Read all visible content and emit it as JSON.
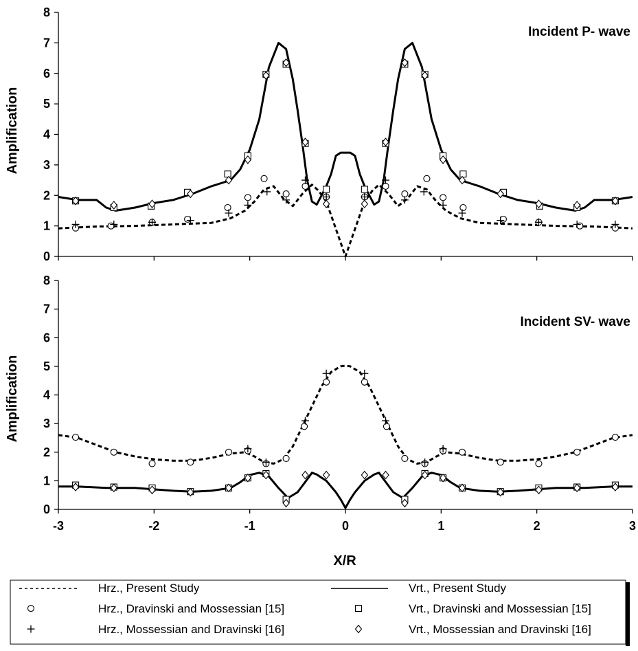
{
  "chart_data": [
    {
      "type": "line",
      "title": "Incident P- wave",
      "xlabel": "",
      "ylabel": "Amplification",
      "xlim": [
        -3,
        3
      ],
      "ylim": [
        0,
        8
      ],
      "yticks": [
        "0",
        "1",
        "2",
        "3",
        "4",
        "5",
        "6",
        "7",
        "8"
      ],
      "grid": false,
      "series": [
        {
          "name": "Hrz., Present Study",
          "style": "dashed",
          "x": [
            -3,
            -2.6,
            -2.2,
            -1.8,
            -1.4,
            -1.2,
            -1.05,
            -0.95,
            -0.85,
            -0.75,
            -0.65,
            -0.55,
            -0.45,
            -0.35,
            -0.28,
            -0.2,
            -0.1,
            0,
            0.1,
            0.2,
            0.28,
            0.35,
            0.45,
            0.55,
            0.65,
            0.75,
            0.85,
            0.95,
            1.05,
            1.2,
            1.4,
            1.8,
            2.2,
            2.6,
            3
          ],
          "y": [
            0.92,
            0.98,
            1.0,
            1.05,
            1.1,
            1.25,
            1.5,
            1.8,
            2.2,
            2.3,
            1.9,
            1.65,
            2.05,
            2.35,
            2.15,
            1.8,
            0.9,
            0,
            0.9,
            1.8,
            2.15,
            2.35,
            2.05,
            1.65,
            1.9,
            2.3,
            2.2,
            1.8,
            1.5,
            1.25,
            1.1,
            1.05,
            1.0,
            0.98,
            0.92
          ]
        },
        {
          "name": "Vrt., Present Study",
          "style": "solid",
          "x": [
            -3,
            -2.8,
            -2.6,
            -2.5,
            -2.4,
            -2.2,
            -2.0,
            -1.8,
            -1.6,
            -1.4,
            -1.3,
            -1.2,
            -1.1,
            -1.0,
            -0.9,
            -0.8,
            -0.7,
            -0.62,
            -0.55,
            -0.5,
            -0.45,
            -0.4,
            -0.35,
            -0.3,
            -0.25,
            -0.2,
            -0.15,
            -0.1,
            -0.05,
            0,
            0.05,
            0.1,
            0.15,
            0.2,
            0.25,
            0.3,
            0.35,
            0.4,
            0.45,
            0.5,
            0.55,
            0.62,
            0.7,
            0.8,
            0.9,
            1.0,
            1.1,
            1.2,
            1.3,
            1.4,
            1.6,
            1.8,
            2.0,
            2.2,
            2.4,
            2.5,
            2.6,
            2.8,
            3
          ],
          "y": [
            1.95,
            1.85,
            1.85,
            1.6,
            1.5,
            1.6,
            1.75,
            1.85,
            2.05,
            2.3,
            2.4,
            2.5,
            2.85,
            3.5,
            4.5,
            6.2,
            7.0,
            6.8,
            5.8,
            4.8,
            3.7,
            2.5,
            1.8,
            1.7,
            2.0,
            2.3,
            2.7,
            3.3,
            3.4,
            3.4,
            3.4,
            3.3,
            2.7,
            2.3,
            2.0,
            1.7,
            1.8,
            2.5,
            3.7,
            4.8,
            5.8,
            6.8,
            7.0,
            6.2,
            4.5,
            3.5,
            2.85,
            2.5,
            2.4,
            2.3,
            2.05,
            1.85,
            1.75,
            1.6,
            1.5,
            1.6,
            1.85,
            1.85,
            1.95
          ]
        }
      ],
      "markers": [
        {
          "name": "Hrz., Dravinski and Mossessian [15]",
          "symbol": "circle",
          "x": [
            -2.82,
            -2.45,
            -2.02,
            -1.65,
            -1.23,
            -1.02,
            -0.85,
            -0.62,
            -0.42,
            -0.2,
            0.2,
            0.42,
            0.62,
            0.85,
            1.02,
            1.23,
            1.65,
            2.02,
            2.45,
            2.82
          ],
          "y": [
            0.93,
            1.0,
            1.12,
            1.22,
            1.6,
            1.93,
            2.55,
            2.05,
            2.3,
            1.95,
            1.95,
            2.3,
            2.05,
            2.55,
            1.93,
            1.6,
            1.22,
            1.12,
            1.0,
            0.93
          ]
        },
        {
          "name": "Vrt., Dravinski and Mossessian [15]",
          "symbol": "square",
          "x": [
            -2.82,
            -2.42,
            -2.03,
            -1.65,
            -1.23,
            -1.02,
            -0.83,
            -0.62,
            -0.42,
            -0.2,
            0.2,
            0.42,
            0.62,
            0.83,
            1.02,
            1.23,
            1.65,
            2.03,
            2.42,
            2.82
          ],
          "y": [
            1.82,
            1.6,
            1.65,
            2.1,
            2.7,
            3.3,
            5.97,
            6.3,
            3.7,
            2.2,
            2.2,
            3.7,
            6.3,
            5.97,
            3.3,
            2.7,
            2.1,
            1.65,
            1.6,
            1.82
          ]
        },
        {
          "name": "Hrz., Mossessian and Dravinski [16]",
          "symbol": "plus",
          "x": [
            -2.82,
            -2.42,
            -2.02,
            -1.62,
            -1.22,
            -1.02,
            -0.82,
            -0.62,
            -0.42,
            -0.2,
            0.2,
            0.42,
            0.62,
            0.82,
            1.02,
            1.22,
            1.62,
            2.02,
            2.42,
            2.82
          ],
          "y": [
            1.05,
            1.05,
            1.12,
            1.18,
            1.42,
            1.68,
            2.12,
            1.85,
            2.5,
            1.95,
            1.95,
            2.5,
            1.85,
            2.12,
            1.68,
            1.42,
            1.18,
            1.12,
            1.05,
            1.05
          ]
        },
        {
          "name": "Vrt., Mossessian and Dravinski [16]",
          "symbol": "diamond",
          "x": [
            -2.82,
            -2.42,
            -2.02,
            -1.62,
            -1.22,
            -1.02,
            -0.83,
            -0.62,
            -0.42,
            -0.2,
            0.2,
            0.42,
            0.62,
            0.83,
            1.02,
            1.22,
            1.62,
            2.02,
            2.42,
            2.82
          ],
          "y": [
            1.82,
            1.68,
            1.72,
            2.05,
            2.5,
            3.17,
            5.93,
            6.35,
            3.75,
            1.72,
            1.72,
            3.75,
            6.35,
            5.93,
            3.17,
            2.5,
            2.05,
            1.72,
            1.68,
            1.82
          ]
        }
      ]
    },
    {
      "type": "line",
      "title": "Incident SV- wave",
      "xlabel": "X/R",
      "ylabel": "Amplification",
      "xlim": [
        -3,
        3
      ],
      "ylim": [
        0,
        8
      ],
      "xticks": [
        "-3",
        "-2",
        "-1",
        "0",
        "1",
        "2",
        "3"
      ],
      "yticks": [
        "0",
        "1",
        "2",
        "3",
        "4",
        "5",
        "6",
        "7",
        "8"
      ],
      "grid": false,
      "series": [
        {
          "name": "Hrz., Present Study",
          "style": "dashed",
          "x": [
            -3,
            -2.8,
            -2.6,
            -2.4,
            -2.2,
            -2.0,
            -1.8,
            -1.6,
            -1.4,
            -1.2,
            -1.05,
            -0.95,
            -0.85,
            -0.75,
            -0.65,
            -0.55,
            -0.45,
            -0.35,
            -0.25,
            -0.15,
            -0.05,
            0,
            0.05,
            0.15,
            0.25,
            0.35,
            0.45,
            0.55,
            0.65,
            0.75,
            0.85,
            0.95,
            1.05,
            1.2,
            1.4,
            1.6,
            1.8,
            2.0,
            2.2,
            2.4,
            2.6,
            2.8,
            3
          ],
          "y": [
            2.6,
            2.5,
            2.25,
            2.0,
            1.85,
            1.75,
            1.7,
            1.7,
            1.8,
            1.95,
            2.0,
            1.85,
            1.65,
            1.6,
            1.75,
            2.2,
            2.9,
            3.6,
            4.3,
            4.8,
            5.0,
            5.02,
            5.0,
            4.8,
            4.3,
            3.6,
            2.9,
            2.2,
            1.75,
            1.6,
            1.65,
            1.85,
            2.0,
            1.95,
            1.8,
            1.7,
            1.7,
            1.75,
            1.85,
            2.0,
            2.25,
            2.5,
            2.6
          ]
        },
        {
          "name": "Vrt., Present Study",
          "style": "solid",
          "x": [
            -3,
            -2.8,
            -2.5,
            -2.2,
            -2.0,
            -1.8,
            -1.6,
            -1.4,
            -1.2,
            -1.1,
            -1.0,
            -0.9,
            -0.8,
            -0.7,
            -0.6,
            -0.5,
            -0.4,
            -0.35,
            -0.3,
            -0.2,
            -0.1,
            -0.05,
            0,
            0.05,
            0.1,
            0.2,
            0.3,
            0.35,
            0.4,
            0.5,
            0.6,
            0.7,
            0.8,
            0.9,
            1.0,
            1.1,
            1.2,
            1.4,
            1.6,
            1.8,
            2.0,
            2.2,
            2.5,
            2.8,
            3
          ],
          "y": [
            0.8,
            0.8,
            0.75,
            0.75,
            0.7,
            0.65,
            0.62,
            0.65,
            0.75,
            0.95,
            1.2,
            1.28,
            1.15,
            0.75,
            0.4,
            0.6,
            1.05,
            1.28,
            1.22,
            1.0,
            0.6,
            0.35,
            0.05,
            0.35,
            0.6,
            1.0,
            1.22,
            1.28,
            1.05,
            0.6,
            0.4,
            0.75,
            1.15,
            1.28,
            1.2,
            0.95,
            0.75,
            0.65,
            0.62,
            0.65,
            0.7,
            0.75,
            0.75,
            0.8,
            0.8
          ]
        }
      ],
      "markers": [
        {
          "name": "Hrz., Dravinski and Mossessian [15]",
          "symbol": "circle",
          "x": [
            -2.82,
            -2.42,
            -2.02,
            -1.62,
            -1.22,
            -1.02,
            -0.83,
            -0.62,
            -0.43,
            -0.2,
            0.2,
            0.43,
            0.62,
            0.83,
            1.02,
            1.22,
            1.62,
            2.02,
            2.42,
            2.82
          ],
          "y": [
            2.52,
            2.0,
            1.6,
            1.65,
            2.0,
            2.05,
            1.6,
            1.78,
            2.9,
            4.45,
            4.45,
            2.9,
            1.78,
            1.6,
            2.05,
            2.0,
            1.65,
            1.6,
            2.0,
            2.52
          ]
        },
        {
          "name": "Vrt., Dravinski and Mossessian [15]",
          "symbol": "square",
          "x": [
            -2.82,
            -2.42,
            -2.02,
            -1.62,
            -1.22,
            -1.02,
            -0.83,
            -0.62,
            0.62,
            0.83,
            1.02,
            1.22,
            1.62,
            2.02,
            2.42,
            2.82
          ],
          "y": [
            0.85,
            0.78,
            0.75,
            0.62,
            0.75,
            1.1,
            1.25,
            0.35,
            0.35,
            1.25,
            1.1,
            0.75,
            0.62,
            0.75,
            0.78,
            0.85
          ]
        },
        {
          "name": "Hrz., Mossessian and Dravinski [16]",
          "symbol": "plus",
          "x": [
            -1.02,
            -0.83,
            -0.42,
            -0.2,
            0.2,
            0.42,
            0.83,
            1.02
          ],
          "y": [
            2.12,
            1.65,
            3.1,
            4.75,
            4.75,
            3.1,
            1.65,
            2.12
          ]
        },
        {
          "name": "Vrt., Mossessian and Dravinski [16]",
          "symbol": "diamond",
          "x": [
            -2.82,
            -2.42,
            -2.02,
            -1.62,
            -1.22,
            -1.02,
            -0.83,
            -0.62,
            -0.42,
            -0.2,
            0.2,
            0.42,
            0.62,
            0.83,
            1.02,
            1.22,
            1.62,
            2.02,
            2.42,
            2.82
          ],
          "y": [
            0.78,
            0.75,
            0.68,
            0.6,
            0.75,
            1.1,
            1.2,
            0.22,
            1.2,
            1.2,
            1.2,
            1.2,
            0.22,
            1.2,
            1.1,
            0.75,
            0.6,
            0.68,
            0.75,
            0.78
          ]
        }
      ]
    }
  ],
  "legend": {
    "placement": "bottom",
    "entries": [
      {
        "label": "Hrz., Present Study",
        "symbol": "dashed-line"
      },
      {
        "label": "Vrt., Present Study",
        "symbol": "solid-line"
      },
      {
        "label": "Hrz., Dravinski and Mossessian [15]",
        "symbol": "circle"
      },
      {
        "label": "Vrt., Dravinski and Mossessian [15]",
        "symbol": "square"
      },
      {
        "label": "Hrz., Mossessian and Dravinski [16]",
        "symbol": "plus"
      },
      {
        "label": "Vrt., Mossessian and Dravinski [16]",
        "symbol": "diamond"
      }
    ]
  },
  "colors": {
    "ink": "#000000",
    "background": "#ffffff"
  }
}
